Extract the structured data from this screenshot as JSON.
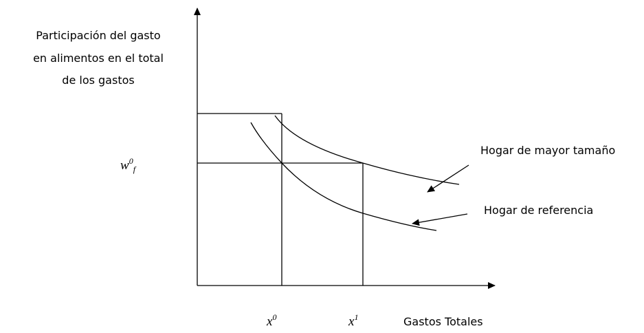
{
  "y_axis_label": [
    "Participación del gasto",
    "en alimentos en el total",
    "de los gastos"
  ],
  "x_axis_label": "Gastos Totales",
  "w_label": {
    "base": "w",
    "sup": "0",
    "sub": "f"
  },
  "x0_label": {
    "base": "x",
    "sup": "0"
  },
  "x1_label": {
    "base": "x",
    "sup": "1"
  },
  "curves": [
    {
      "label": "Hogar de mayor tamaño"
    },
    {
      "label": "Hogar de referencia"
    }
  ]
}
